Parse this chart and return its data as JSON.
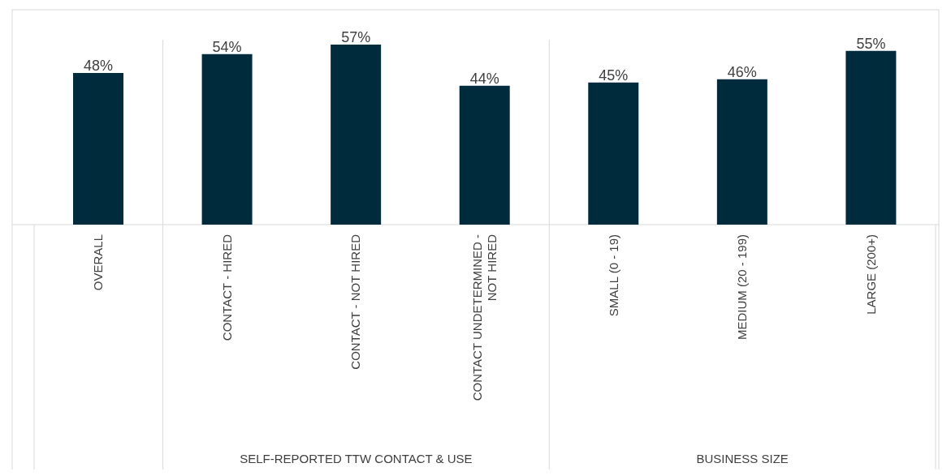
{
  "chart_data": {
    "type": "bar",
    "categories": [
      "OVERALL",
      "CONTACT - HIRED",
      "CONTACT - NOT HIRED",
      "CONTACT UNDETERMINED - NOT HIRED",
      "SMALL (0 - 19)",
      "MEDIUM (20 - 199)",
      "LARGE (200+)"
    ],
    "values": [
      48,
      54,
      57,
      44,
      45,
      46,
      55
    ],
    "value_labels": [
      "48%",
      "54%",
      "57%",
      "44%",
      "45%",
      "46%",
      "55%"
    ],
    "color": "#002b3d",
    "annotations": [
      "SELF-REPORTED TTW CONTACT & USE",
      "BUSINESS SIZE"
    ]
  }
}
